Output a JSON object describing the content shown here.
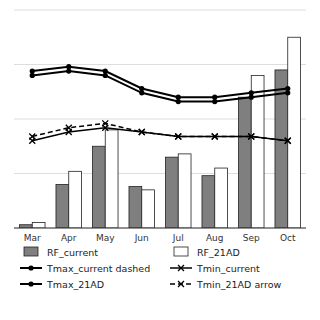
{
  "chart_data": {
    "type": "bar",
    "categories": [
      "Mar",
      "Apr",
      "May",
      "Jun",
      "Jul",
      "Aug",
      "Sep",
      "Oct"
    ],
    "series": [
      {
        "name": "RF_current",
        "type": "bar",
        "color": "#7f7f7f",
        "values": [
          3,
          40,
          75,
          38,
          65,
          48,
          120,
          145
        ]
      },
      {
        "name": "RF_21AD",
        "type": "bar",
        "color": "#ffffff",
        "values": [
          5,
          52,
          90,
          35,
          68,
          55,
          140,
          175
        ]
      },
      {
        "name": "Tmax_current dashed",
        "type": "line",
        "axis": "y2",
        "color": "#000000",
        "marker": "circle",
        "line_style": "solid",
        "values": [
          35,
          36,
          35,
          31,
          29,
          29,
          30,
          31
        ]
      },
      {
        "name": "Tmin_current",
        "type": "line",
        "axis": "y2",
        "color": "#000000",
        "marker": "x",
        "line_style": "solid",
        "values": [
          20,
          22,
          23,
          22,
          21,
          21,
          21,
          20
        ]
      },
      {
        "name": "Tmax_21AD",
        "type": "line",
        "axis": "y2",
        "color": "#000000",
        "marker": "circle",
        "line_style": "solid",
        "values": [
          36,
          37,
          36,
          32,
          30,
          30,
          31,
          32
        ]
      },
      {
        "name": "Tmin_21AD arrow",
        "type": "line",
        "axis": "y2",
        "color": "#000000",
        "marker": "x",
        "line_style": "dashed",
        "values": [
          21,
          23,
          24,
          22,
          21,
          21,
          21,
          20
        ]
      }
    ],
    "ylim": [
      0,
      200
    ],
    "yticks": [
      0,
      50,
      100,
      150,
      200
    ],
    "y2lim": [
      0,
      50
    ],
    "grid": true,
    "legend": "bottom",
    "tick_labels": "x"
  }
}
